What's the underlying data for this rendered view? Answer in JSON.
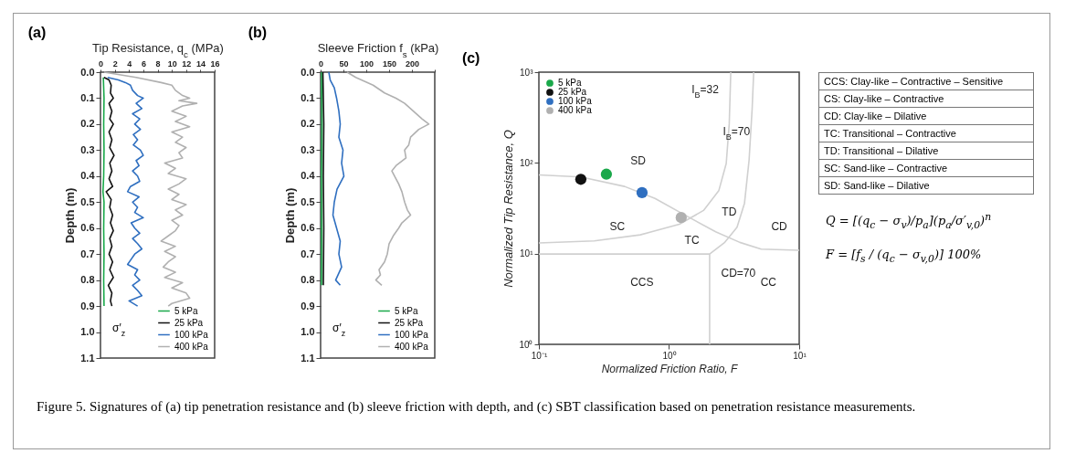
{
  "chart_data": [
    {
      "type": "line",
      "title": "(a)",
      "xlabel": "Tip Resistance, q$_{c}$ (MPa)",
      "ylabel": "Depth (m)",
      "legend_title": "σ′$_{z}$",
      "legend": "bottom right",
      "xlim": [
        0,
        16
      ],
      "xticks": [
        0,
        2,
        4,
        6,
        8,
        10,
        12,
        14,
        16
      ],
      "ylim": [
        1.1,
        0
      ],
      "yticks": [
        {
          "value": 0,
          "label": "0.0"
        },
        0.1,
        0.2,
        0.3,
        0.4,
        0.5,
        0.6,
        0.7,
        0.8,
        0.9,
        {
          "value": 1,
          "label": "1.0"
        },
        1.1
      ],
      "annotations": [
        "Figure 5.  Signatures of (a) tip penetration resistance and (b) sleeve friction with depth, and (c) SBT classification based on penetration resistance measurements."
      ],
      "series": [
        {
          "name": "5 kPa",
          "color": "#1aa84a",
          "x": [
            0.4,
            0.5,
            0.45,
            0.5,
            0.45,
            0.35,
            0.5,
            0.45,
            0.5,
            0.45,
            0.5
          ],
          "values": [
            0.02,
            0.1,
            0.2,
            0.3,
            0.4,
            0.46,
            0.5,
            0.6,
            0.7,
            0.8,
            0.9
          ]
        },
        {
          "name": "25 kPa",
          "color": "#111111",
          "x": [
            0.5,
            1.2,
            1.5,
            1.4,
            1.8,
            1.2,
            1.6,
            1.3,
            1.8,
            1.2,
            1.6,
            1.3,
            1.9,
            1.3,
            1.6,
            1.2,
            1.7,
            0.8,
            1.5,
            1.3,
            1.7,
            1.4,
            1.8,
            1.3,
            1.6,
            1.2,
            1.7,
            1.3,
            1.8,
            1.1,
            1.6,
            1.4,
            1.6
          ],
          "values": [
            0.02,
            0.03,
            0.05,
            0.08,
            0.1,
            0.12,
            0.15,
            0.18,
            0.2,
            0.23,
            0.26,
            0.29,
            0.32,
            0.35,
            0.38,
            0.41,
            0.44,
            0.46,
            0.49,
            0.52,
            0.55,
            0.58,
            0.61,
            0.64,
            0.67,
            0.7,
            0.73,
            0.76,
            0.79,
            0.82,
            0.85,
            0.88,
            0.9
          ]
        },
        {
          "name": "100 kPa",
          "color": "#2f6fc0",
          "x": [
            1,
            2.5,
            3.5,
            4.2,
            4.5,
            5.2,
            6,
            5,
            5.8,
            4.5,
            5.5,
            4.8,
            5.6,
            4.6,
            5.2,
            4.6,
            5.6,
            6,
            5,
            5.4,
            4.5,
            5.2,
            5.5,
            4.2,
            3.8,
            5.4,
            4.5,
            5.2,
            4.8,
            6,
            4.3,
            4.8,
            5.5,
            4.5,
            5.2,
            5.8,
            4.8,
            4.3,
            3.8,
            5.2,
            4.8,
            5.5,
            4.5,
            5.2,
            5.8,
            4,
            5.2
          ],
          "values": [
            0.02,
            0.03,
            0.04,
            0.05,
            0.07,
            0.09,
            0.1,
            0.12,
            0.14,
            0.16,
            0.18,
            0.2,
            0.22,
            0.24,
            0.26,
            0.28,
            0.3,
            0.32,
            0.34,
            0.36,
            0.38,
            0.4,
            0.42,
            0.44,
            0.46,
            0.48,
            0.5,
            0.52,
            0.54,
            0.56,
            0.58,
            0.6,
            0.62,
            0.64,
            0.66,
            0.68,
            0.7,
            0.72,
            0.74,
            0.76,
            0.78,
            0.8,
            0.82,
            0.84,
            0.86,
            0.88,
            0.9
          ]
        },
        {
          "name": "400 kPa",
          "color": "#b0b0b0",
          "x": [
            0.5,
            5,
            8.5,
            10,
            10.5,
            11.5,
            12.5,
            11,
            13.5,
            11.5,
            10,
            12,
            10.5,
            12.5,
            10,
            11.5,
            10.5,
            12,
            11,
            11.5,
            9,
            10.5,
            9.5,
            12,
            11,
            9.5,
            11,
            10,
            12,
            10.5,
            11.5,
            10,
            11,
            10.5,
            9.5,
            8.5,
            10.5,
            9,
            10.5,
            9.5,
            8.8,
            10.5,
            9,
            11.5,
            10,
            12,
            12.5,
            10,
            9.5
          ],
          "values": [
            0,
            0.02,
            0.04,
            0.05,
            0.07,
            0.09,
            0.1,
            0.11,
            0.12,
            0.13,
            0.15,
            0.17,
            0.19,
            0.21,
            0.23,
            0.25,
            0.27,
            0.29,
            0.31,
            0.33,
            0.35,
            0.37,
            0.39,
            0.41,
            0.43,
            0.45,
            0.47,
            0.49,
            0.51,
            0.53,
            0.55,
            0.57,
            0.59,
            0.61,
            0.63,
            0.65,
            0.67,
            0.69,
            0.71,
            0.73,
            0.75,
            0.77,
            0.79,
            0.81,
            0.83,
            0.85,
            0.87,
            0.89,
            0.9
          ]
        }
      ]
    },
    {
      "type": "line",
      "title": "(b)",
      "xlabel": "Sleeve Friction f$_{s}$ (kPa)",
      "ylabel": "Depth (m)",
      "legend_title": "σ′$_{z}$",
      "legend": "bottom right",
      "xlim": [
        0,
        250
      ],
      "xticks": [
        0,
        50,
        100,
        150,
        200,
        {
          "value": 250,
          "label": null
        }
      ],
      "ylim": [
        1.1,
        0
      ],
      "yticks": [
        {
          "value": 0,
          "label": "0.0"
        },
        0.1,
        0.2,
        0.3,
        0.4,
        0.5,
        0.6,
        0.7,
        0.8,
        0.9,
        {
          "value": 1,
          "label": "1.0"
        },
        1.1
      ],
      "series": [
        {
          "name": "5 kPa",
          "color": "#1aa84a",
          "x": [
            2,
            3,
            2,
            2.5,
            2
          ],
          "values": [
            0,
            0.2,
            0.4,
            0.6,
            0.82
          ]
        },
        {
          "name": "25 kPa",
          "color": "#111111",
          "x": [
            5,
            7,
            6,
            7,
            6
          ],
          "values": [
            0,
            0.2,
            0.4,
            0.6,
            0.82
          ]
        },
        {
          "name": "100 kPa",
          "color": "#2f6fc0",
          "x": [
            18,
            21,
            30,
            35,
            40,
            43,
            40,
            49,
            46,
            51,
            36,
            30,
            27,
            35,
            43,
            40,
            46,
            33,
            43
          ],
          "values": [
            0,
            0.03,
            0.06,
            0.1,
            0.15,
            0.2,
            0.25,
            0.3,
            0.35,
            0.4,
            0.45,
            0.5,
            0.55,
            0.6,
            0.65,
            0.7,
            0.75,
            0.8,
            0.82
          ]
        },
        {
          "name": "400 kPa",
          "color": "#b0b0b0",
          "x": [
            58,
            77,
            115,
            140,
            165,
            184,
            203,
            222,
            237,
            215,
            197,
            193,
            184,
            187,
            165,
            156,
            162,
            171,
            178,
            184,
            190,
            197,
            178,
            171,
            159,
            150,
            146,
            140,
            128,
            131,
            121,
            134
          ],
          "values": [
            0,
            0.02,
            0.05,
            0.08,
            0.1,
            0.12,
            0.15,
            0.18,
            0.2,
            0.22,
            0.25,
            0.28,
            0.3,
            0.33,
            0.36,
            0.38,
            0.4,
            0.43,
            0.46,
            0.5,
            0.53,
            0.55,
            0.58,
            0.6,
            0.63,
            0.66,
            0.7,
            0.73,
            0.76,
            0.78,
            0.8,
            0.82
          ]
        }
      ]
    },
    {
      "type": "scatter",
      "title": "(c)",
      "xlabel": "Normalized Friction Ratio, F",
      "ylabel": "Normalized Tip Resistance, Q",
      "log": "xy",
      "legend": "top left",
      "xlim": [
        0.1,
        10
      ],
      "xticks": [
        {
          "value": 0.1,
          "label": "10⁻¹"
        },
        {
          "value": 1,
          "label": "10⁰"
        },
        {
          "value": 10,
          "label": "10¹"
        }
      ],
      "ylim": [
        1,
        1000
      ],
      "yticks": [
        {
          "value": 1,
          "label": "10⁰"
        },
        {
          "value": 10,
          "label": "10¹"
        },
        {
          "value": 100,
          "label": "10²"
        },
        {
          "value": 1000,
          "label": "10³"
        }
      ],
      "annotations": [
        "SD",
        "SC",
        "TC",
        "TD",
        "CD",
        "CCS",
        "CC",
        "I$_{B}$=32",
        "I$_{B}$=70",
        "CD=70",
        "CCS: Clay-like – Contractive – Sensitive",
        "CS: Clay-like – Contractive",
        "CD: Clay-like – Dilative",
        "TC: Transitional – Contractive",
        "TD: Transitional – Dilative",
        "SC: Sand-like – Contractive",
        "SD: Sand-like – Dilative",
        "Q = [(q$_{c}$ − σ$_{v}$)/p$_{a}$](p$_{a}$/σ′$_{v,0}$)$^{n}$",
        "F = [f$_{s}$ / (q$_{c}$ − σ$_{v,0}$)] 100%"
      ],
      "series": [
        {
          "type": "line",
          "color": "#d0d0d0",
          "x": [
            0.1,
            0.21,
            0.455,
            0.78,
            1.33,
            2.28,
            3.5,
            5.1,
            10
          ],
          "values": [
            73.6,
            70,
            55,
            40.6,
            26.5,
            17.4,
            13.3,
            11.2,
            10.9
          ]
        },
        {
          "type": "line",
          "color": "#d0d0d0",
          "x": [
            0.1,
            0.266,
            0.6,
            1.2,
            1.84,
            2.41,
            2.75,
            2.9,
            2.98
          ],
          "values": [
            13.1,
            13.8,
            16.1,
            21.1,
            29.9,
            49.3,
            98.6,
            269,
            1000
          ]
        },
        {
          "type": "line",
          "color": "#d0d0d0",
          "x": [
            2.05,
            2.68,
            3.33,
            3.8,
            4.12,
            4.35,
            4.47
          ],
          "values": [
            9.9,
            13.3,
            19.5,
            36,
            107,
            396,
            1000
          ]
        },
        {
          "type": "line",
          "color": "#d0d0d0",
          "x": [
            0.1,
            2.05
          ],
          "values": [
            9.9,
            9.9
          ]
        },
        {
          "type": "line",
          "color": "#d0d0d0",
          "x": [
            2.05,
            2.05
          ],
          "values": [
            9.9,
            1
          ]
        },
        {
          "name": "5 kPa",
          "color": "#1aa84a",
          "marker": "circle",
          "x": [
            0.33
          ],
          "values": [
            75
          ]
        },
        {
          "name": "25 kPa",
          "color": "#111111",
          "marker": "circle",
          "x": [
            0.21
          ],
          "values": [
            66
          ]
        },
        {
          "name": "100 kPa",
          "color": "#2f6fc0",
          "marker": "circle",
          "x": [
            0.62
          ],
          "values": [
            47
          ]
        },
        {
          "name": "400 kPa",
          "color": "#b0b0b0",
          "marker": "circle",
          "x": [
            1.24
          ],
          "values": [
            25
          ]
        }
      ]
    }
  ]
}
